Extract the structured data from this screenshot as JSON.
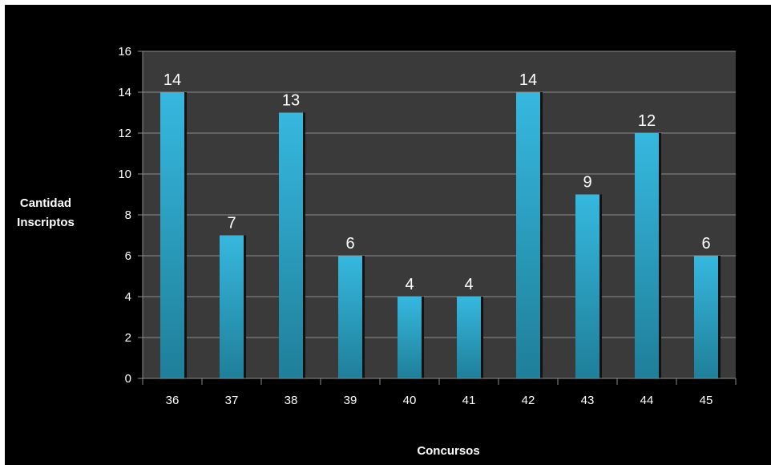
{
  "chart_data": {
    "type": "bar",
    "categories": [
      "36",
      "37",
      "38",
      "39",
      "40",
      "41",
      "42",
      "43",
      "44",
      "45"
    ],
    "values": [
      14,
      7,
      13,
      6,
      4,
      4,
      14,
      9,
      12,
      6
    ],
    "xlabel": "Concursos",
    "ylabel_lines": [
      "Cantidad",
      "Inscriptos"
    ],
    "ylim": [
      0,
      16
    ],
    "yticks": [
      0,
      2,
      4,
      6,
      8,
      10,
      12,
      14,
      16
    ],
    "grid": true,
    "data_labels": true,
    "colors": {
      "background": "#000000",
      "plot_area": "#3a3a3a",
      "bar_top": "#36b8df",
      "bar_bottom": "#1f7f99",
      "grid": "#8c8c8c",
      "text": "#ffffff"
    }
  }
}
